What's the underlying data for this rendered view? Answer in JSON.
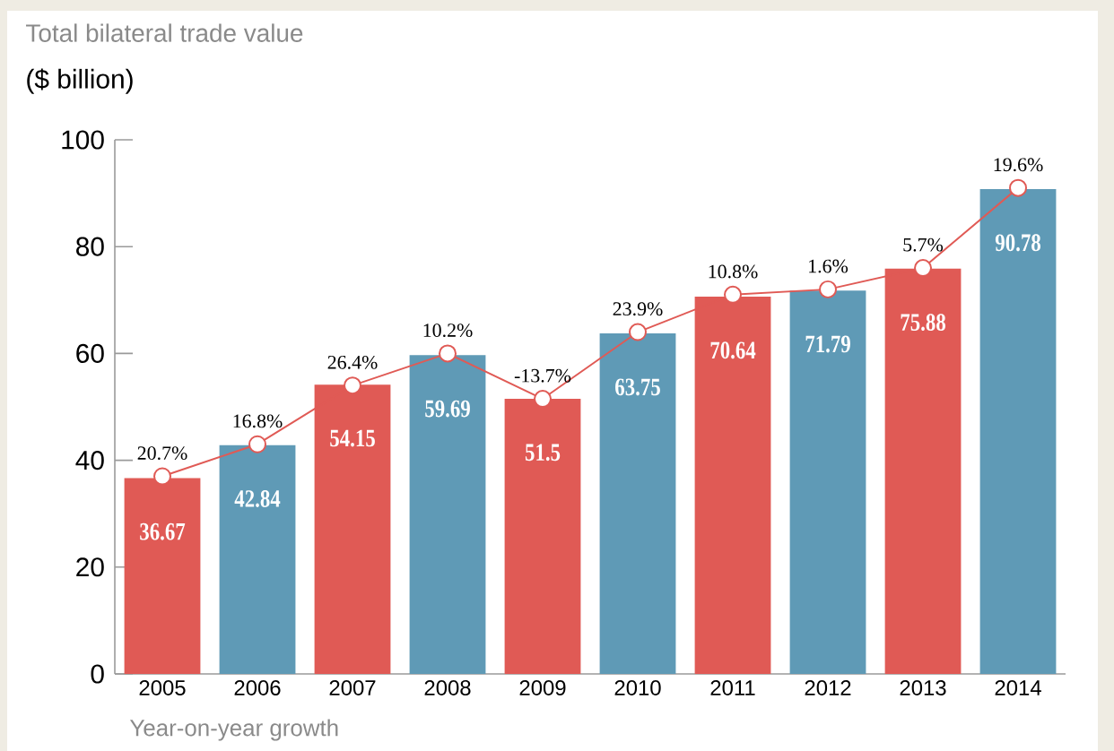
{
  "chart_data": {
    "type": "bar",
    "title": "Total bilateral trade value",
    "ylabel": "($ billion)",
    "annotations": [
      "Year-on-year growth",
      {
        "text": "20.7%",
        "x": "2005",
        "y": 37
      },
      {
        "text": "16.8%",
        "x": "2006",
        "y": 43
      },
      {
        "text": "26.4%",
        "x": "2007",
        "y": 54
      },
      {
        "text": "10.2%",
        "x": "2008",
        "y": 60
      },
      {
        "text": "-13.7%",
        "x": "2009",
        "y": 51.5
      },
      {
        "text": "23.9%",
        "x": "2010",
        "y": 64
      },
      {
        "text": "10.8%",
        "x": "2011",
        "y": 71
      },
      {
        "text": "1.6%",
        "x": "2012",
        "y": 72
      },
      {
        "text": "5.7%",
        "x": "2013",
        "y": 76
      },
      {
        "text": "19.6%",
        "x": "2014",
        "y": 91
      }
    ],
    "categories": [
      "2005",
      "2006",
      "2007",
      "2008",
      "2009",
      "2010",
      "2011",
      "2012",
      "2013",
      "2014"
    ],
    "series": [
      {
        "colors": [
          "#e05a55",
          "#5f9ab6",
          "#e05a55",
          "#5f9ab6",
          "#e05a55",
          "#5f9ab6",
          "#e05a55",
          "#5f9ab6",
          "#e05a55",
          "#5f9ab6"
        ],
        "values": [
          36.67,
          42.84,
          54.15,
          59.69,
          51.5,
          63.75,
          70.64,
          71.79,
          75.88,
          90.78
        ],
        "value_labels": [
          "36.67",
          "42.84",
          "54.15",
          "59.69",
          "51.5",
          "63.75",
          "70.64",
          "71.79",
          "75.88",
          "90.78"
        ]
      },
      {
        "type": "line",
        "color": "#e05a55",
        "marker": "circle",
        "values": [
          37,
          43,
          54,
          60,
          51.5,
          64,
          71,
          72,
          76,
          91
        ]
      }
    ],
    "ylim": [
      0,
      100
    ],
    "yticks": [
      0,
      20,
      40,
      60,
      80,
      100
    ],
    "grid": false
  }
}
